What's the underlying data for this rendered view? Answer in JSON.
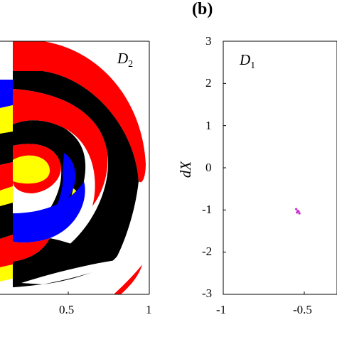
{
  "panel_b_label": "(b)",
  "left_panel": {
    "region_label": "D",
    "region_sub": "2",
    "x_ticks": [
      "0.5",
      "1"
    ]
  },
  "right_panel": {
    "region_label": "D",
    "region_sub": "1",
    "ylabel": "dX",
    "y_ticks": [
      "3",
      "2",
      "1",
      "0",
      "-1",
      "-2",
      "-3"
    ],
    "x_ticks": [
      "-1",
      "-0.5"
    ]
  },
  "colors": {
    "red": "#ff0000",
    "black": "#000000",
    "yellow": "#ffff00",
    "blue": "#0000ff",
    "white": "#ffffff",
    "magenta": "#cc33cc"
  },
  "chart_data": [
    {
      "type": "scatter",
      "description": "basin-of-attraction map (colored regions)",
      "title": "",
      "xlabel": "",
      "ylabel": "",
      "x_ticks": [
        "0.5",
        "1"
      ],
      "region_label": "D2",
      "series": []
    },
    {
      "type": "scatter",
      "title": "",
      "xlabel": "",
      "ylabel": "dX",
      "ylim": [
        -3,
        3
      ],
      "y_ticks": [
        3,
        2,
        1,
        0,
        -1,
        -2,
        -3
      ],
      "x_ticks": [
        -1,
        -0.5
      ],
      "region_label": "D1",
      "series": [
        {
          "x": [
            -0.55,
            -0.54,
            -0.545,
            -0.535,
            -0.53
          ],
          "y": [
            -0.98,
            -1.02,
            -1.06,
            -1.04,
            -1.08
          ]
        }
      ]
    }
  ]
}
